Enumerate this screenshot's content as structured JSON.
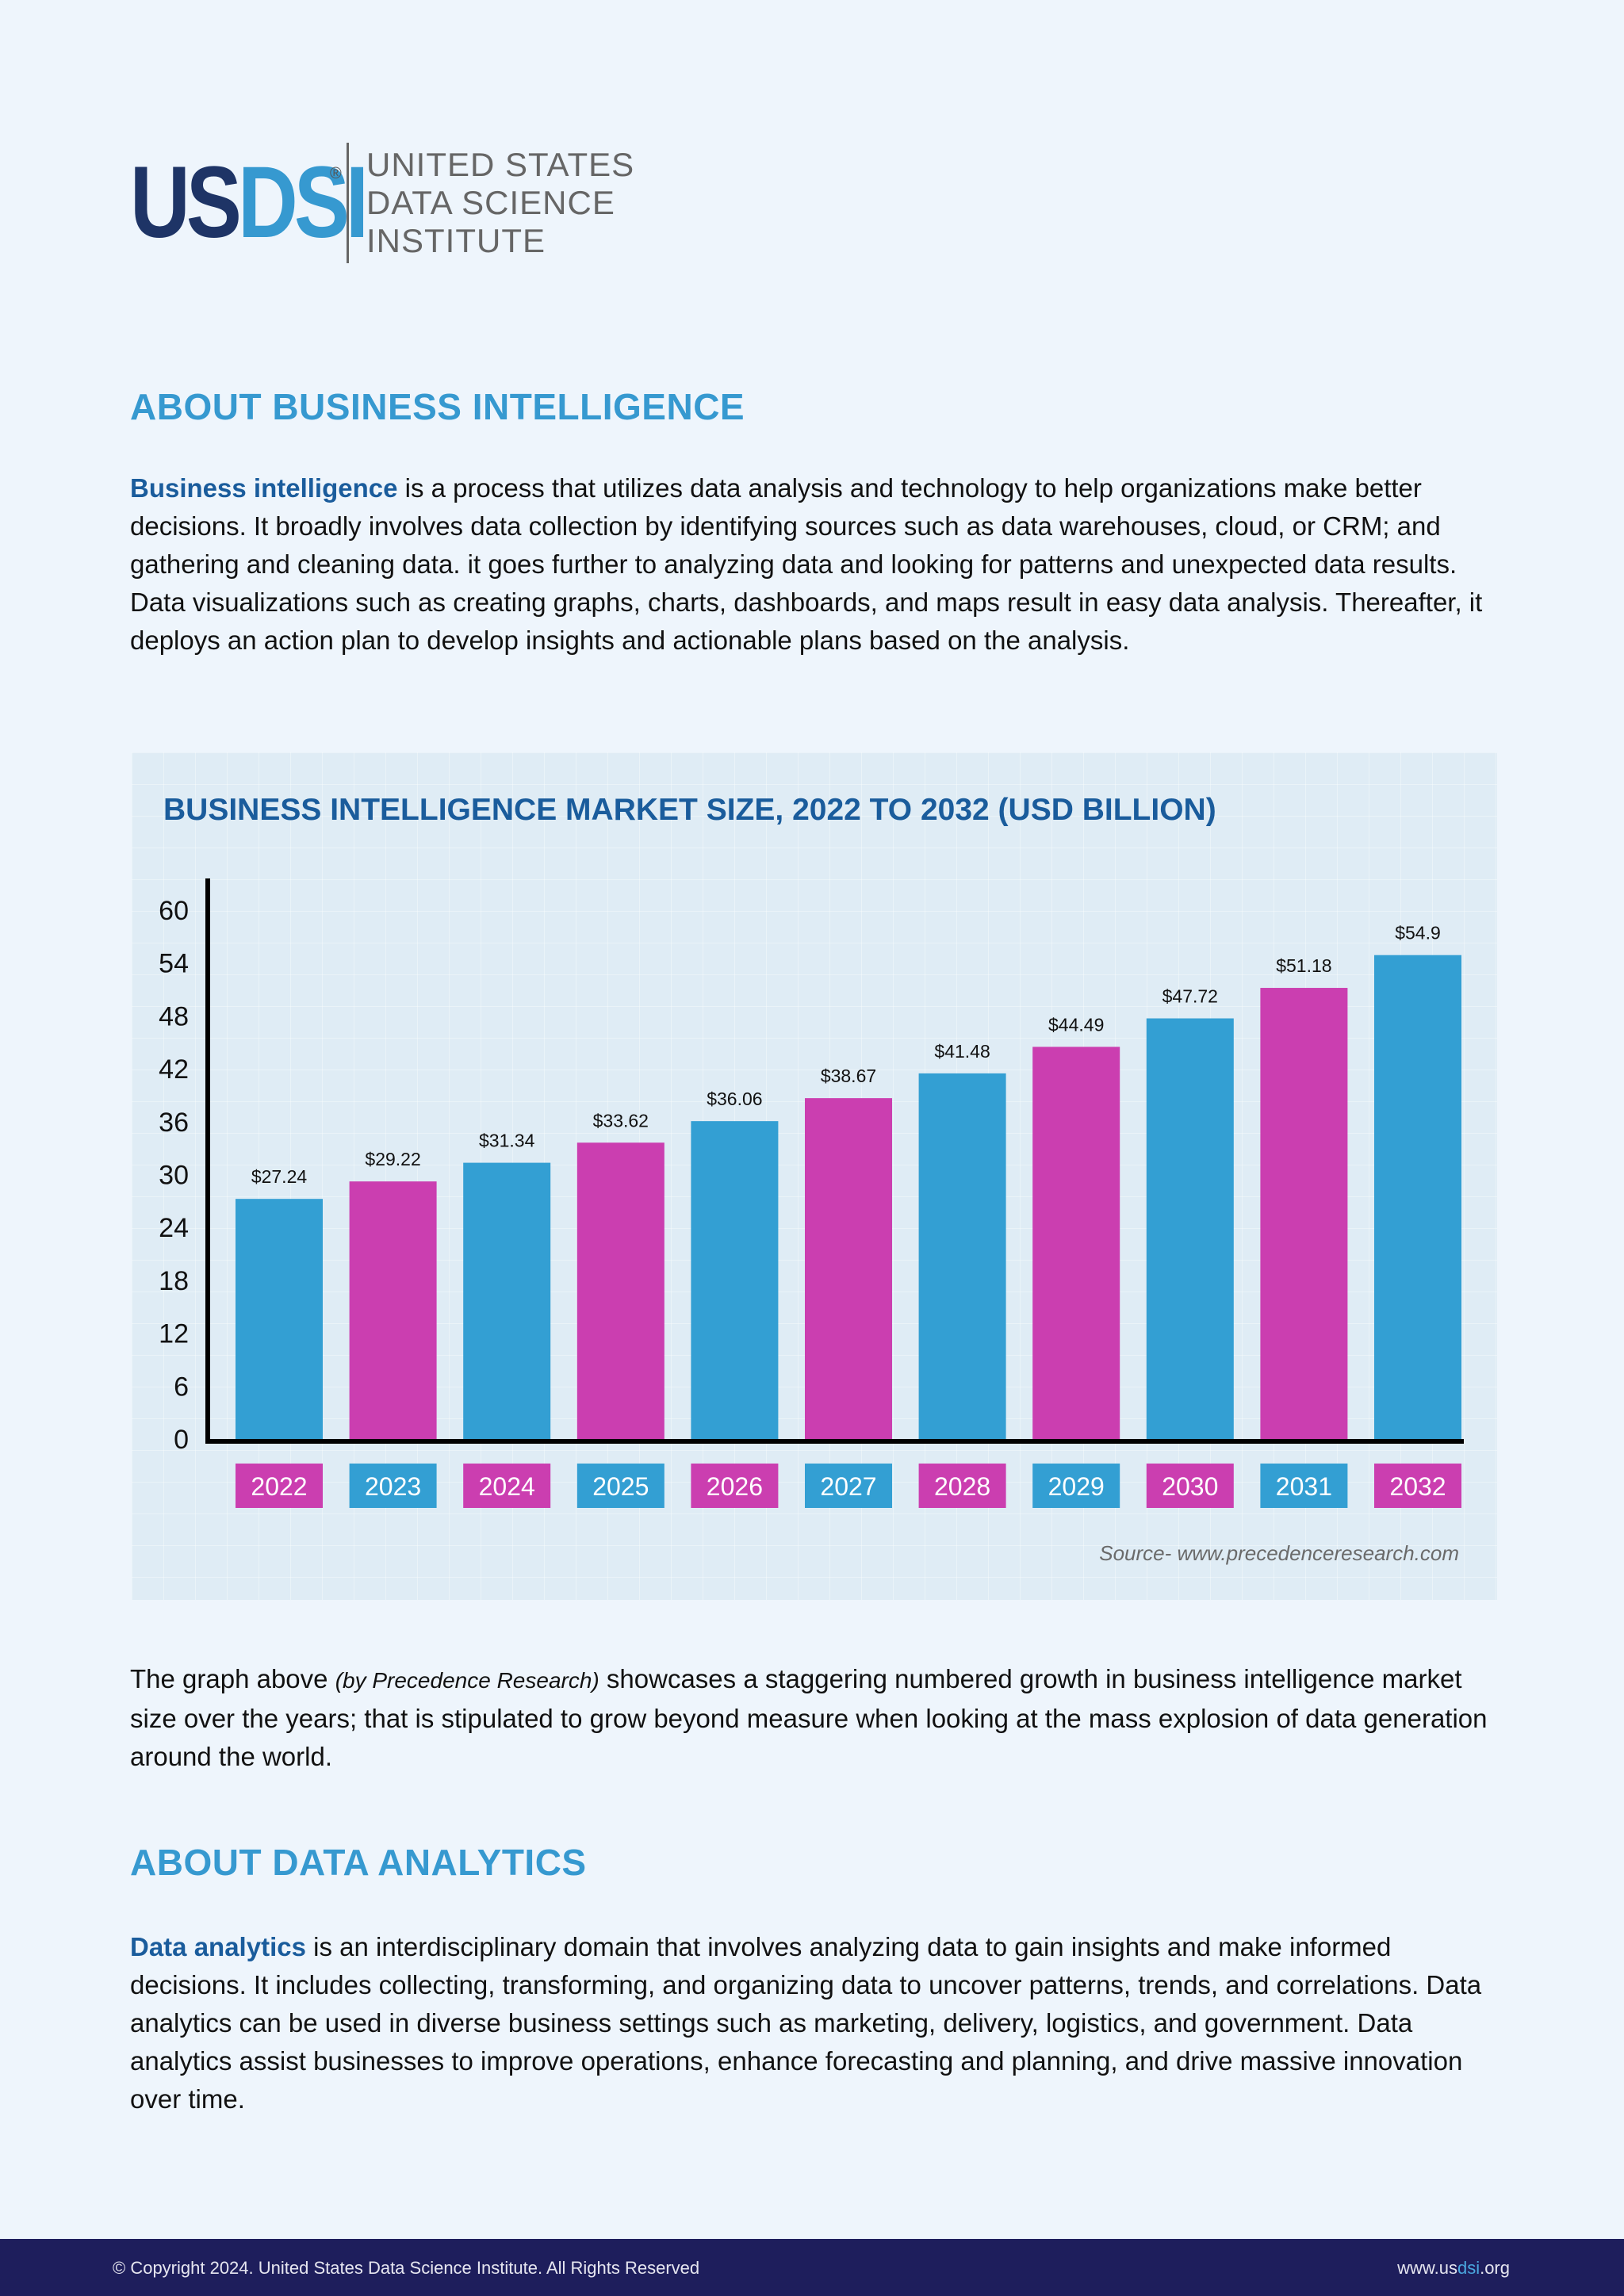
{
  "logo": {
    "mark_us": "US",
    "mark_dsi": "DSI",
    "registered": "®",
    "text_lines": [
      "UNITED STATES",
      "DATA SCIENCE",
      "INSTITUTE"
    ]
  },
  "section1": {
    "heading": "ABOUT BUSINESS INTELLIGENCE",
    "lead": "Business intelligence",
    "body": " is a process that utilizes data analysis and technology to help organizations make better decisions. It broadly involves data collection by identifying sources such as data warehouses, cloud, or CRM; and gathering and cleaning data. it goes further to analyzing data and looking for patterns and unexpected data results. Data visualizations such as creating graphs, charts, dashboards, and maps result in easy data analysis. Thereafter, it deploys an action plan to develop insights and actionable plans based on the analysis."
  },
  "chart_data": {
    "type": "bar",
    "title": "BUSINESS INTELLIGENCE MARKET SIZE, 2022 TO 2032 (USD BILLION)",
    "categories": [
      "2022",
      "2023",
      "2024",
      "2025",
      "2026",
      "2027",
      "2028",
      "2029",
      "2030",
      "2031",
      "2032"
    ],
    "values": [
      27.24,
      29.22,
      31.34,
      33.62,
      36.06,
      38.67,
      41.48,
      44.49,
      47.72,
      51.18,
      54.9
    ],
    "value_labels": [
      "$27.24",
      "$29.22",
      "$31.34",
      "$33.62",
      "$36.06",
      "$38.67",
      "$41.48",
      "$44.49",
      "$47.72",
      "$51.18",
      "$54.9"
    ],
    "y_ticks": [
      0,
      6,
      12,
      18,
      24,
      30,
      36,
      42,
      48,
      54,
      60
    ],
    "ylim": [
      0,
      60
    ],
    "xlabel": "",
    "ylabel": "",
    "grid": false,
    "bar_colors": [
      "#339fd3",
      "#cb3eb0",
      "#339fd3",
      "#cb3eb0",
      "#339fd3",
      "#cb3eb0",
      "#339fd3",
      "#cb3eb0",
      "#339fd3",
      "#cb3eb0",
      "#339fd3"
    ],
    "label_colors": [
      "#cb3eb0",
      "#339fd3",
      "#cb3eb0",
      "#339fd3",
      "#cb3eb0",
      "#339fd3",
      "#cb3eb0",
      "#339fd3",
      "#cb3eb0",
      "#339fd3",
      "#cb3eb0"
    ],
    "source": "Source- www.precedenceresearch.com"
  },
  "section2": {
    "pre": "The graph above ",
    "italic": "(by Precedence Research)",
    "post": " showcases a staggering numbered growth in business intelligence market size over the years; that is stipulated to grow beyond measure when looking at the mass explosion of data generation around the world."
  },
  "section3": {
    "heading": "ABOUT DATA ANALYTICS",
    "lead": "Data analytics",
    "body": " is an interdisciplinary domain that involves analyzing data to gain insights and make informed decisions. It includes collecting, transforming, and organizing data to uncover patterns, trends, and correlations. Data analytics can be used in diverse business settings such as marketing, delivery, logistics, and government. Data analytics assist businesses to improve operations, enhance forecasting and planning, and drive massive innovation over time."
  },
  "footer": {
    "copyright": "© Copyright 2024. United States Data Science Institute. All Rights Reserved",
    "site_prefix": "www.us",
    "site_highlight": "dsi",
    "site_suffix": ".org"
  },
  "colors": {
    "heading": "#3699d0",
    "lead": "#1a5c9c",
    "bar_blue": "#339fd3",
    "bar_magenta": "#cb3eb0",
    "footer_bg": "#1e1e5c"
  }
}
